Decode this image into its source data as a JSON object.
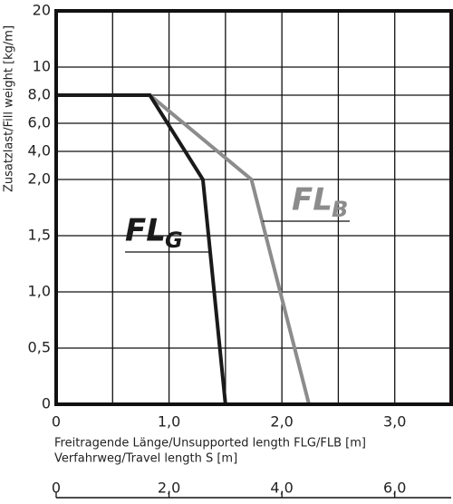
{
  "chart_data": {
    "type": "line",
    "ylabel": "Zusatzlast/Fill weight [kg/m]",
    "xlabel": "Freitragende Länge/Unsupported length FLG/FLB [m]",
    "x2label": "Verfahrweg/Travel length S [m]",
    "xlim": [
      0,
      3.5
    ],
    "xticks": [
      0,
      {
        "value": 1,
        "label": "1,0"
      },
      {
        "value": 2,
        "label": "2,0"
      },
      {
        "value": 3,
        "label": "3,0"
      }
    ],
    "xgrid": [
      0.5,
      1.5,
      2.5
    ],
    "x2lim": [
      0,
      7
    ],
    "x2ticks": [
      0,
      {
        "value": 2,
        "label": "2,0"
      },
      {
        "value": 4,
        "label": "4,0"
      },
      {
        "value": 6,
        "label": "6,0"
      }
    ],
    "ylim": [
      0,
      20
    ],
    "yticks": [
      0,
      {
        "value": 0.5,
        "label": "0,5"
      },
      {
        "value": 1,
        "label": "1,0"
      },
      {
        "value": 1.5,
        "label": "1,5"
      },
      {
        "value": 2,
        "label": "2,0"
      },
      {
        "value": 4,
        "label": "4,0"
      },
      {
        "value": 6,
        "label": "6,0"
      },
      {
        "value": 8,
        "label": "8,0"
      },
      10,
      20
    ],
    "y_scale": "piecewise",
    "grid": true,
    "series": [
      {
        "name": "FL",
        "subscript": "B",
        "color": "#8c8c8c",
        "x": [
          0,
          0.83,
          1.73,
          2.24
        ],
        "values": [
          8,
          8,
          2,
          0
        ]
      },
      {
        "name": "FL",
        "subscript": "G",
        "color": "#1a1a1a",
        "x": [
          0,
          0.83,
          1.3,
          1.5
        ],
        "values": [
          8,
          8,
          2,
          0
        ]
      }
    ]
  }
}
